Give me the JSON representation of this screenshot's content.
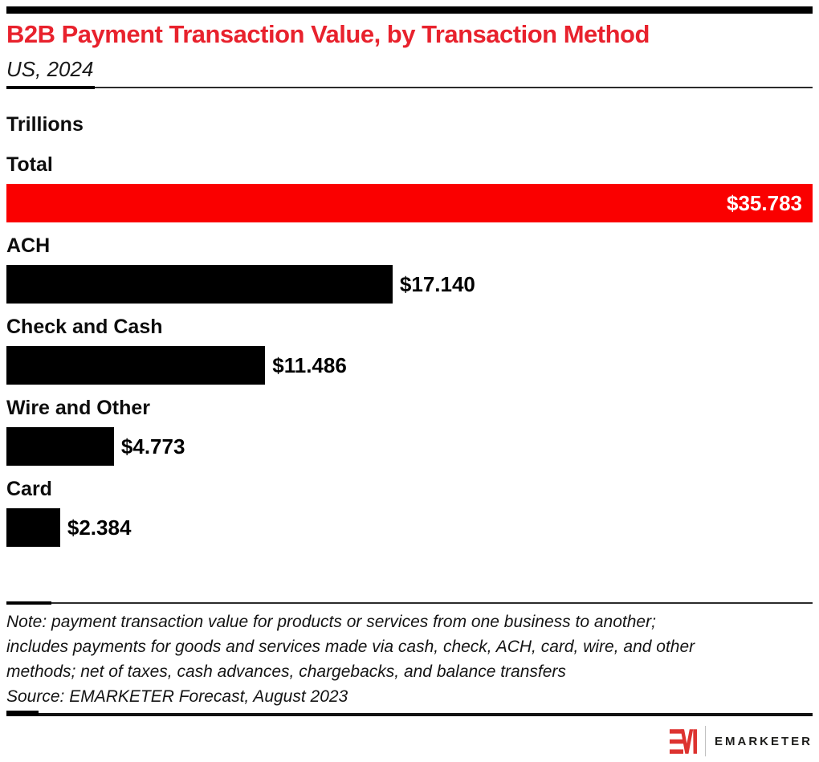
{
  "header": {
    "title": "B2B Payment Transaction Value, by Transaction Method",
    "subtitle": "US, 2024",
    "title_color": "#e8222d"
  },
  "chart_data": {
    "type": "bar",
    "orientation": "horizontal",
    "title": "B2B Payment Transaction Value, by Transaction Method",
    "subtitle": "US, 2024",
    "unit_label": "Trillions",
    "categories": [
      "Total",
      "ACH",
      "Check and Cash",
      "Wire and Other",
      "Card"
    ],
    "values": [
      35.783,
      17.14,
      11.486,
      4.773,
      2.384
    ],
    "value_labels": [
      "$35.783",
      "$17.140",
      "$11.486",
      "$4.773",
      "$2.384"
    ],
    "xlim": [
      0,
      35.783
    ],
    "bar_colors": [
      "#fa0000",
      "#000000",
      "#000000",
      "#000000",
      "#000000"
    ],
    "value_label_position": [
      "inside-right",
      "outside-right",
      "outside-right",
      "outside-right",
      "outside-right"
    ],
    "grid": false,
    "legend": false
  },
  "footnote": {
    "note_lines": [
      "Note: payment transaction value for products or services from one business to another;",
      "includes payments for goods and services made via cash, check, ACH, card, wire, and other",
      "methods; net of taxes, cash advances, chargebacks, and balance transfers"
    ],
    "source": "Source: EMARKETER Forecast, August 2023"
  },
  "footer": {
    "brand_name": "EMARKETER",
    "logo_monogram": "EM",
    "logo_color": "#dd3330"
  }
}
